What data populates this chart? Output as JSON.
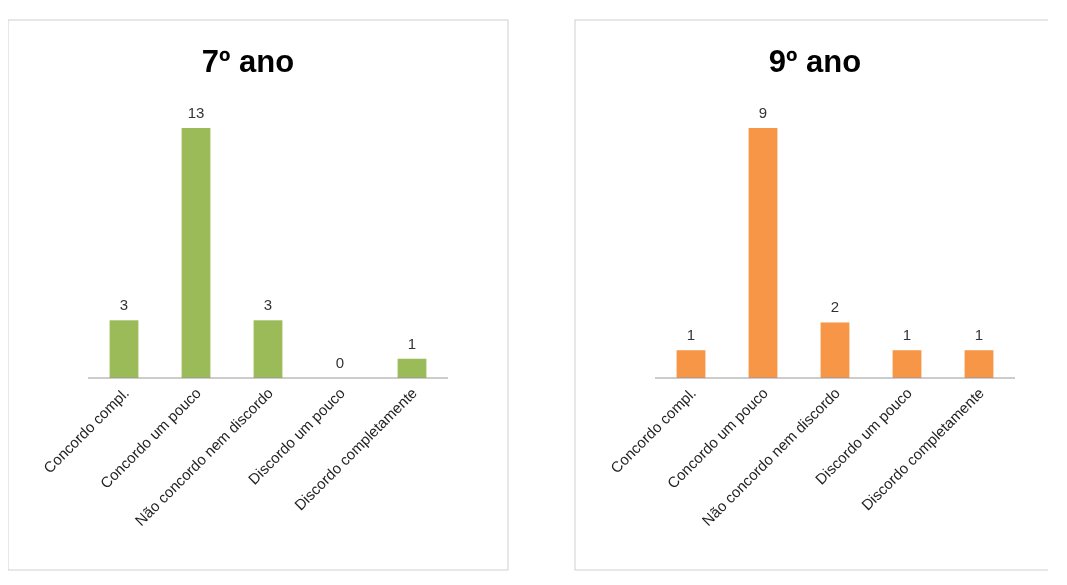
{
  "chart_data": [
    {
      "type": "bar",
      "title": "7º ano",
      "categories": [
        "Concordo compl.",
        "Concordo um pouco",
        "Não concordo nem discordo",
        "Discordo um pouco",
        "Discordo completamente"
      ],
      "values": [
        3,
        13,
        3,
        0,
        1
      ],
      "color": "#9bbb59",
      "data_labels": true
    },
    {
      "type": "bar",
      "title": "9º ano",
      "categories": [
        "Concordo compl.",
        "Concordo um pouco",
        "Não concordo nem discordo",
        "Discordo um pouco",
        "Discordo completamente"
      ],
      "values": [
        1,
        9,
        2,
        1,
        1
      ],
      "color": "#f79646",
      "data_labels": true
    }
  ]
}
